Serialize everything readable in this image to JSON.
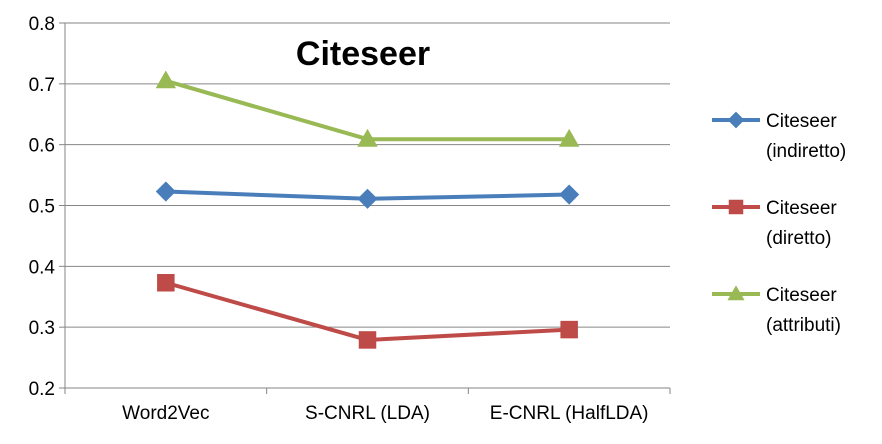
{
  "chart_data": {
    "type": "line",
    "title": "Citeseer",
    "xlabel": "",
    "ylabel": "",
    "categories": [
      "Word2Vec",
      "S-CNRL (LDA)",
      "E-CNRL (HalfLDA)"
    ],
    "ylim": [
      0.2,
      0.8
    ],
    "yticks": [
      "0.2",
      "0.3",
      "0.4",
      "0.5",
      "0.6",
      "0.7",
      "0.8"
    ],
    "grid": true,
    "legend_position": "right",
    "series": [
      {
        "name": "Citeseer (indiretto)",
        "legend_lines": [
          "Citeseer",
          "(indiretto)"
        ],
        "values": [
          0.523,
          0.511,
          0.518
        ],
        "color": "#4a7ebb",
        "marker": "diamond"
      },
      {
        "name": "Citeseer (diretto)",
        "legend_lines": [
          "Citeseer",
          "(diretto)"
        ],
        "values": [
          0.373,
          0.279,
          0.296
        ],
        "color": "#be4b48",
        "marker": "square"
      },
      {
        "name": "Citeseer (attributi)",
        "legend_lines": [
          "Citeseer",
          "(attributi)"
        ],
        "values": [
          0.705,
          0.609,
          0.609
        ],
        "color": "#98b954",
        "marker": "triangle"
      }
    ]
  }
}
